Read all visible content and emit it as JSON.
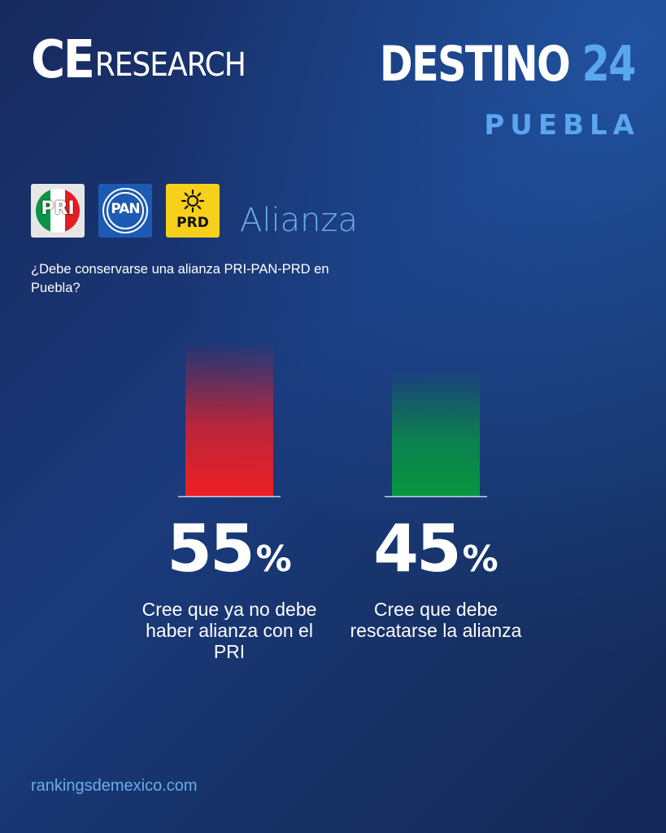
{
  "header": {
    "logo_ce": "CE",
    "logo_research": "RESEARCH",
    "brand_destino": "DESTINO",
    "brand_number": "24",
    "city": "PUEBLA"
  },
  "parties": {
    "pri_label": "PRI",
    "pan_label": "PAN",
    "prd_label": "PRD",
    "section_title": "Alianza"
  },
  "question": "¿Debe conservarse una alianza PRI-PAN-PRD en Puebla?",
  "footer": "rankingsdemexico.com",
  "colors": {
    "background": "#1a3a7c",
    "accent": "#5aa7f0",
    "bar_red": "#ee1f25",
    "bar_green": "#079640"
  },
  "chart_data": {
    "type": "bar",
    "categories": [
      "Cree que ya no debe haber alianza con el PRI",
      "Cree que debe rescatarse la alianza"
    ],
    "values": [
      55,
      45
    ],
    "value_suffix": "%",
    "colors": [
      "#ee1f25",
      "#079640"
    ],
    "ylim": [
      0,
      55
    ],
    "grid": false,
    "legend": "none"
  }
}
